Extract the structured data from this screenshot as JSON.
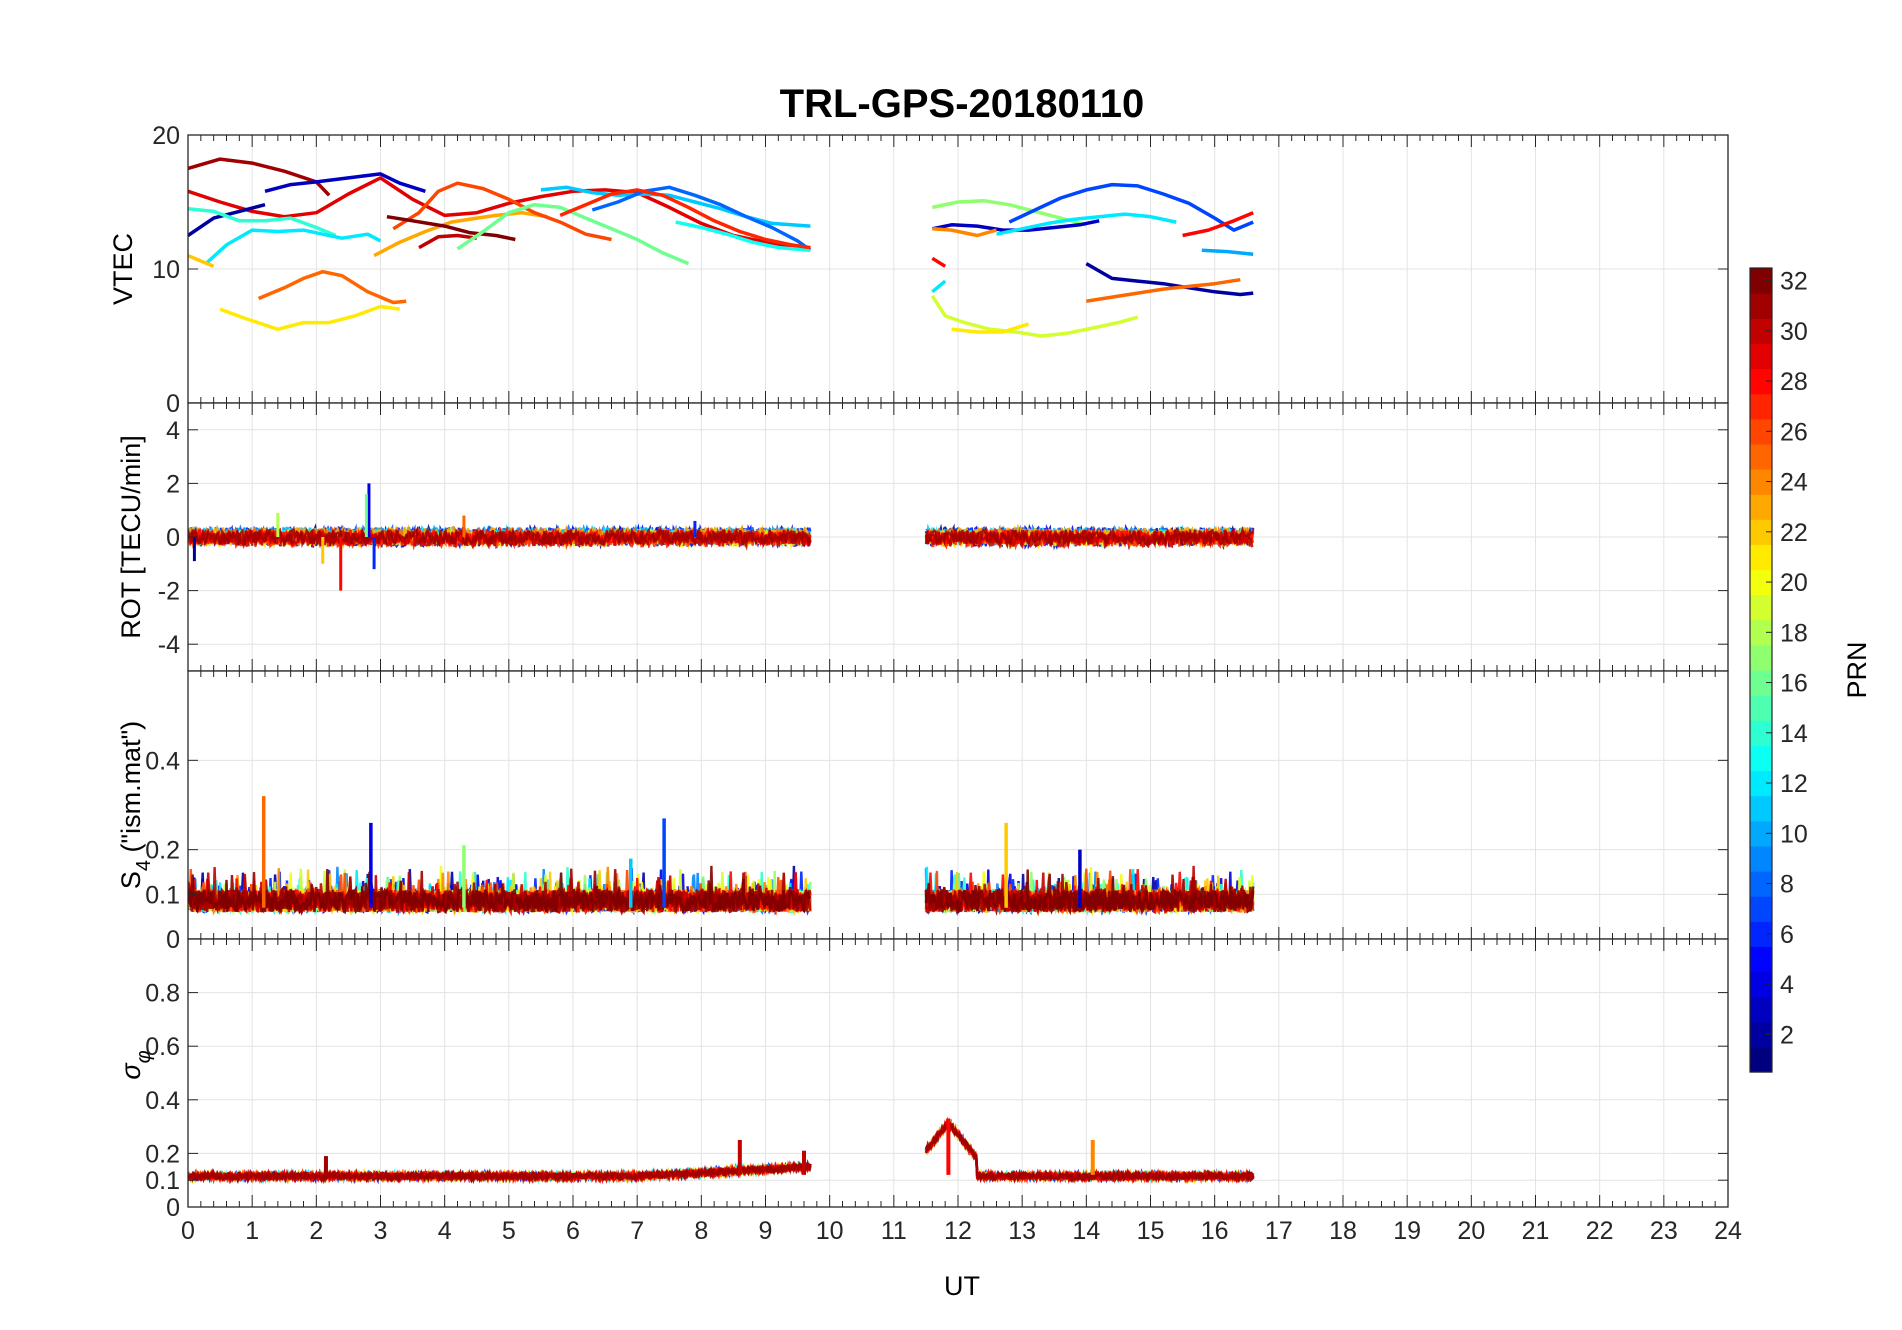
{
  "title": "TRL-GPS-20180110",
  "colors": {
    "jet_stops": [
      "#00007f",
      "#0000ff",
      "#007fff",
      "#00ffff",
      "#7fff7f",
      "#ffff00",
      "#ff7f00",
      "#ff0000",
      "#7f0000"
    ]
  },
  "x_axis": {
    "label": "UT",
    "range": [
      0,
      24
    ],
    "ticks": [
      "0",
      "1",
      "2",
      "3",
      "4",
      "5",
      "6",
      "7",
      "8",
      "9",
      "10",
      "11",
      "12",
      "13",
      "14",
      "15",
      "16",
      "17",
      "18",
      "19",
      "20",
      "21",
      "22",
      "23",
      "24"
    ]
  },
  "colorbar": {
    "label": "PRN",
    "range": [
      1,
      32
    ],
    "ticks": [
      "2",
      "4",
      "6",
      "8",
      "10",
      "12",
      "14",
      "16",
      "18",
      "20",
      "22",
      "24",
      "26",
      "28",
      "30",
      "32"
    ]
  },
  "chart_data": [
    {
      "type": "line",
      "title": "",
      "xlabel": "",
      "ylabel": "VTEC",
      "ylim": [
        0,
        20
      ],
      "yticks": [
        "0",
        "10",
        "20"
      ],
      "grid": true,
      "series": [
        {
          "prn": 31,
          "x": [
            0,
            0.5,
            1,
            1.5,
            2,
            2.2
          ],
          "y": [
            17.5,
            18.2,
            17.9,
            17.3,
            16.5,
            15.5
          ]
        },
        {
          "prn": 29,
          "x": [
            0,
            0.5,
            1,
            1.5,
            2,
            2.5,
            3,
            3.5,
            4,
            4.5,
            5,
            5.5,
            6,
            6.5,
            7,
            7.5,
            8,
            8.5,
            9,
            9.7
          ],
          "y": [
            15.8,
            15.0,
            14.3,
            13.9,
            14.2,
            15.6,
            16.8,
            15.2,
            14.0,
            14.2,
            14.9,
            15.4,
            15.8,
            15.9,
            15.7,
            14.6,
            13.4,
            12.5,
            12.0,
            11.5
          ]
        },
        {
          "prn": 2,
          "x": [
            0,
            0.4,
            0.8,
            1.2
          ],
          "y": [
            12.5,
            13.8,
            14.3,
            14.8
          ]
        },
        {
          "prn": 3,
          "x": [
            1.2,
            1.6,
            2,
            2.5,
            3,
            3.3,
            3.7
          ],
          "y": [
            15.8,
            16.3,
            16.5,
            16.8,
            17.1,
            16.4,
            15.8
          ]
        },
        {
          "prn": 14,
          "x": [
            0,
            0.4,
            0.8,
            1.2,
            1.6,
            2,
            2.3
          ],
          "y": [
            14.5,
            14.3,
            13.6,
            13.6,
            13.8,
            13.1,
            12.5
          ]
        },
        {
          "prn": 12,
          "x": [
            0.3,
            0.6,
            1,
            1.4,
            1.8,
            2.1,
            2.4,
            2.8,
            3
          ],
          "y": [
            10.5,
            11.8,
            12.9,
            12.8,
            12.9,
            12.6,
            12.3,
            12.6,
            12.1
          ]
        },
        {
          "prn": 22,
          "x": [
            0,
            0.2,
            0.4
          ],
          "y": [
            11.0,
            10.6,
            10.2
          ]
        },
        {
          "prn": 25,
          "x": [
            1.1,
            1.5,
            1.8,
            2.1,
            2.4,
            2.8,
            3.2,
            3.4
          ],
          "y": [
            7.8,
            8.6,
            9.3,
            9.8,
            9.5,
            8.3,
            7.5,
            7.6
          ]
        },
        {
          "prn": 21,
          "x": [
            0.5,
            0.9,
            1.4,
            1.8,
            2.2,
            2.6,
            3,
            3.3
          ],
          "y": [
            7.0,
            6.3,
            5.5,
            6.0,
            6.0,
            6.5,
            7.2,
            7.0
          ]
        },
        {
          "prn": 23,
          "x": [
            2.9,
            3.3,
            3.7,
            4.1,
            4.5,
            4.8,
            5.2,
            5.6
          ],
          "y": [
            11.0,
            12.0,
            12.8,
            13.5,
            13.8,
            14.0,
            14.2,
            13.9
          ]
        },
        {
          "prn": 26,
          "x": [
            3.2,
            3.6,
            3.9,
            4.2,
            4.6,
            5,
            5.4,
            5.8,
            6.2,
            6.6
          ],
          "y": [
            13.0,
            14.2,
            15.8,
            16.4,
            16.0,
            15.2,
            14.2,
            13.5,
            12.6,
            12.2
          ]
        },
        {
          "prn": 30,
          "x": [
            3.6,
            3.9,
            4.2,
            4.5
          ],
          "y": [
            11.6,
            12.4,
            12.5,
            12.3
          ]
        },
        {
          "prn": 32,
          "x": [
            3.1,
            3.5,
            4,
            4.4,
            4.8,
            5.1
          ],
          "y": [
            13.9,
            13.6,
            13.2,
            12.7,
            12.5,
            12.2
          ]
        },
        {
          "prn": 16,
          "x": [
            4.2,
            4.6,
            5,
            5.4,
            5.8,
            6.2,
            6.6,
            7,
            7.4,
            7.8
          ],
          "y": [
            11.5,
            12.8,
            14.2,
            14.8,
            14.6,
            13.8,
            13.0,
            12.2,
            11.2,
            10.4
          ]
        },
        {
          "prn": 11,
          "x": [
            5.5,
            5.9,
            6.3,
            6.7,
            7.1,
            7.5,
            7.9,
            8.3,
            8.7,
            9.1,
            9.7
          ],
          "y": [
            15.9,
            16.1,
            15.7,
            15.5,
            15.6,
            15.5,
            15.0,
            14.5,
            13.9,
            13.4,
            13.2
          ]
        },
        {
          "prn": 8,
          "x": [
            6.3,
            6.7,
            7.1,
            7.5,
            7.9,
            8.3,
            8.7,
            9.1,
            9.5,
            9.7
          ],
          "y": [
            14.4,
            15.0,
            15.8,
            16.1,
            15.5,
            14.8,
            13.9,
            13.1,
            12.1,
            11.4
          ]
        },
        {
          "prn": 13,
          "x": [
            7.6,
            8,
            8.4,
            8.8,
            9.2,
            9.7
          ],
          "y": [
            13.5,
            13.1,
            12.6,
            12.0,
            11.6,
            11.4
          ]
        },
        {
          "prn": 27,
          "x": [
            5.8,
            6.2,
            6.6,
            7,
            7.4,
            7.8,
            8.2,
            8.6,
            9,
            9.4,
            9.7
          ],
          "y": [
            14.0,
            14.8,
            15.6,
            15.9,
            15.5,
            14.6,
            13.6,
            12.8,
            12.2,
            11.8,
            11.6
          ]
        },
        {
          "prn": 17,
          "x": [
            11.6,
            12,
            12.4,
            12.8,
            13.2,
            13.6,
            14
          ],
          "y": [
            14.6,
            15.0,
            15.1,
            14.8,
            14.3,
            13.8,
            13.3
          ]
        },
        {
          "prn": 3,
          "x": [
            11.6,
            11.9,
            12.3,
            12.7,
            13.1,
            13.5,
            13.9,
            14.2
          ],
          "y": [
            13.0,
            13.3,
            13.2,
            12.9,
            12.9,
            13.1,
            13.3,
            13.6
          ]
        },
        {
          "prn": 24,
          "x": [
            11.6,
            11.9,
            12.3,
            12.6
          ],
          "y": [
            13.0,
            12.9,
            12.5,
            12.9
          ]
        },
        {
          "prn": 12,
          "x": [
            12.6,
            13,
            13.4,
            13.8,
            14.2,
            14.6,
            15,
            15.4
          ],
          "y": [
            12.6,
            13.0,
            13.4,
            13.7,
            13.9,
            14.1,
            13.9,
            13.5
          ]
        },
        {
          "prn": 7,
          "x": [
            12.8,
            13.2,
            13.6,
            14,
            14.4,
            14.8,
            15.2,
            15.6,
            16,
            16.3,
            16.6
          ],
          "y": [
            13.5,
            14.4,
            15.3,
            15.9,
            16.3,
            16.2,
            15.6,
            14.9,
            13.8,
            12.9,
            13.5
          ]
        },
        {
          "prn": 28,
          "x": [
            15.5,
            15.9,
            16.3,
            16.6
          ],
          "y": [
            12.5,
            12.9,
            13.6,
            14.2
          ]
        },
        {
          "prn": 10,
          "x": [
            15.8,
            16.2,
            16.6
          ],
          "y": [
            11.4,
            11.3,
            11.1
          ]
        },
        {
          "prn": 2,
          "x": [
            14.0,
            14.4,
            14.8,
            15.2,
            15.6,
            16,
            16.4,
            16.6
          ],
          "y": [
            10.4,
            9.3,
            9.1,
            8.9,
            8.6,
            8.3,
            8.1,
            8.2
          ]
        },
        {
          "prn": 25,
          "x": [
            14.0,
            14.4,
            14.8,
            15.2,
            15.6,
            16,
            16.4
          ],
          "y": [
            7.6,
            7.9,
            8.2,
            8.5,
            8.7,
            8.9,
            9.2
          ]
        },
        {
          "prn": 28,
          "x": [
            11.6,
            11.8
          ],
          "y": [
            10.8,
            10.2
          ]
        },
        {
          "prn": 12,
          "x": [
            11.6,
            11.8
          ],
          "y": [
            8.3,
            9.1
          ]
        },
        {
          "prn": 19,
          "x": [
            11.6,
            11.8,
            12.1,
            12.5,
            12.9,
            13.3,
            13.7,
            14.1,
            14.5,
            14.8
          ],
          "y": [
            8.0,
            6.5,
            6.0,
            5.5,
            5.3,
            5.0,
            5.2,
            5.6,
            6.0,
            6.4
          ]
        },
        {
          "prn": 21,
          "x": [
            11.9,
            12.3,
            12.7,
            13.1
          ],
          "y": [
            5.5,
            5.3,
            5.3,
            5.9
          ]
        }
      ]
    },
    {
      "type": "line",
      "title": "",
      "xlabel": "",
      "ylabel": "ROT [TECU/min]",
      "ylim": [
        -5,
        5
      ],
      "yticks": [
        "-4",
        "-2",
        "0",
        "2",
        "4"
      ],
      "grid": true,
      "spikes": [
        {
          "prn": 4,
          "x": 2.82,
          "y": 2.0
        },
        {
          "prn": 16,
          "x": 2.78,
          "y": 1.6
        },
        {
          "prn": 28,
          "x": 2.38,
          "y": -2.0
        },
        {
          "prn": 6,
          "x": 2.9,
          "y": -1.2
        },
        {
          "prn": 22,
          "x": 2.1,
          "y": -1.0
        },
        {
          "prn": 2,
          "x": 0.1,
          "y": -0.9
        },
        {
          "prn": 25,
          "x": 4.3,
          "y": 0.8
        },
        {
          "prn": 18,
          "x": 1.4,
          "y": 0.9
        },
        {
          "prn": 6,
          "x": 7.9,
          "y": 0.6
        }
      ]
    },
    {
      "type": "line",
      "title": "",
      "xlabel": "",
      "ylabel": "S₄ (\"ism.mat\")",
      "ylim": [
        0,
        0.6
      ],
      "yticks": [
        "0",
        "0.1",
        "0.2",
        "0.4"
      ],
      "grid": true,
      "peaks": [
        {
          "prn": 25,
          "x": 1.18,
          "y": 0.32
        },
        {
          "prn": 7,
          "x": 7.42,
          "y": 0.27
        },
        {
          "prn": 4,
          "x": 2.85,
          "y": 0.26
        },
        {
          "prn": 22,
          "x": 12.75,
          "y": 0.26
        },
        {
          "prn": 17,
          "x": 4.3,
          "y": 0.21
        },
        {
          "prn": 3,
          "x": 13.9,
          "y": 0.2
        },
        {
          "prn": 11,
          "x": 6.9,
          "y": 0.18
        }
      ]
    },
    {
      "type": "line",
      "title": "",
      "xlabel": "UT",
      "ylabel": "σ_φ",
      "ylim": [
        0,
        1
      ],
      "yticks": [
        "0",
        "0.1",
        "0.2",
        "0.4",
        "0.6",
        "0.8"
      ],
      "grid": true,
      "peaks": [
        {
          "prn": 28,
          "x": 11.85,
          "y": 0.33
        },
        {
          "prn": 24,
          "x": 14.1,
          "y": 0.25
        },
        {
          "prn": 30,
          "x": 8.6,
          "y": 0.25
        },
        {
          "prn": 30,
          "x": 9.6,
          "y": 0.21
        },
        {
          "prn": 31,
          "x": 2.15,
          "y": 0.19
        }
      ]
    }
  ]
}
